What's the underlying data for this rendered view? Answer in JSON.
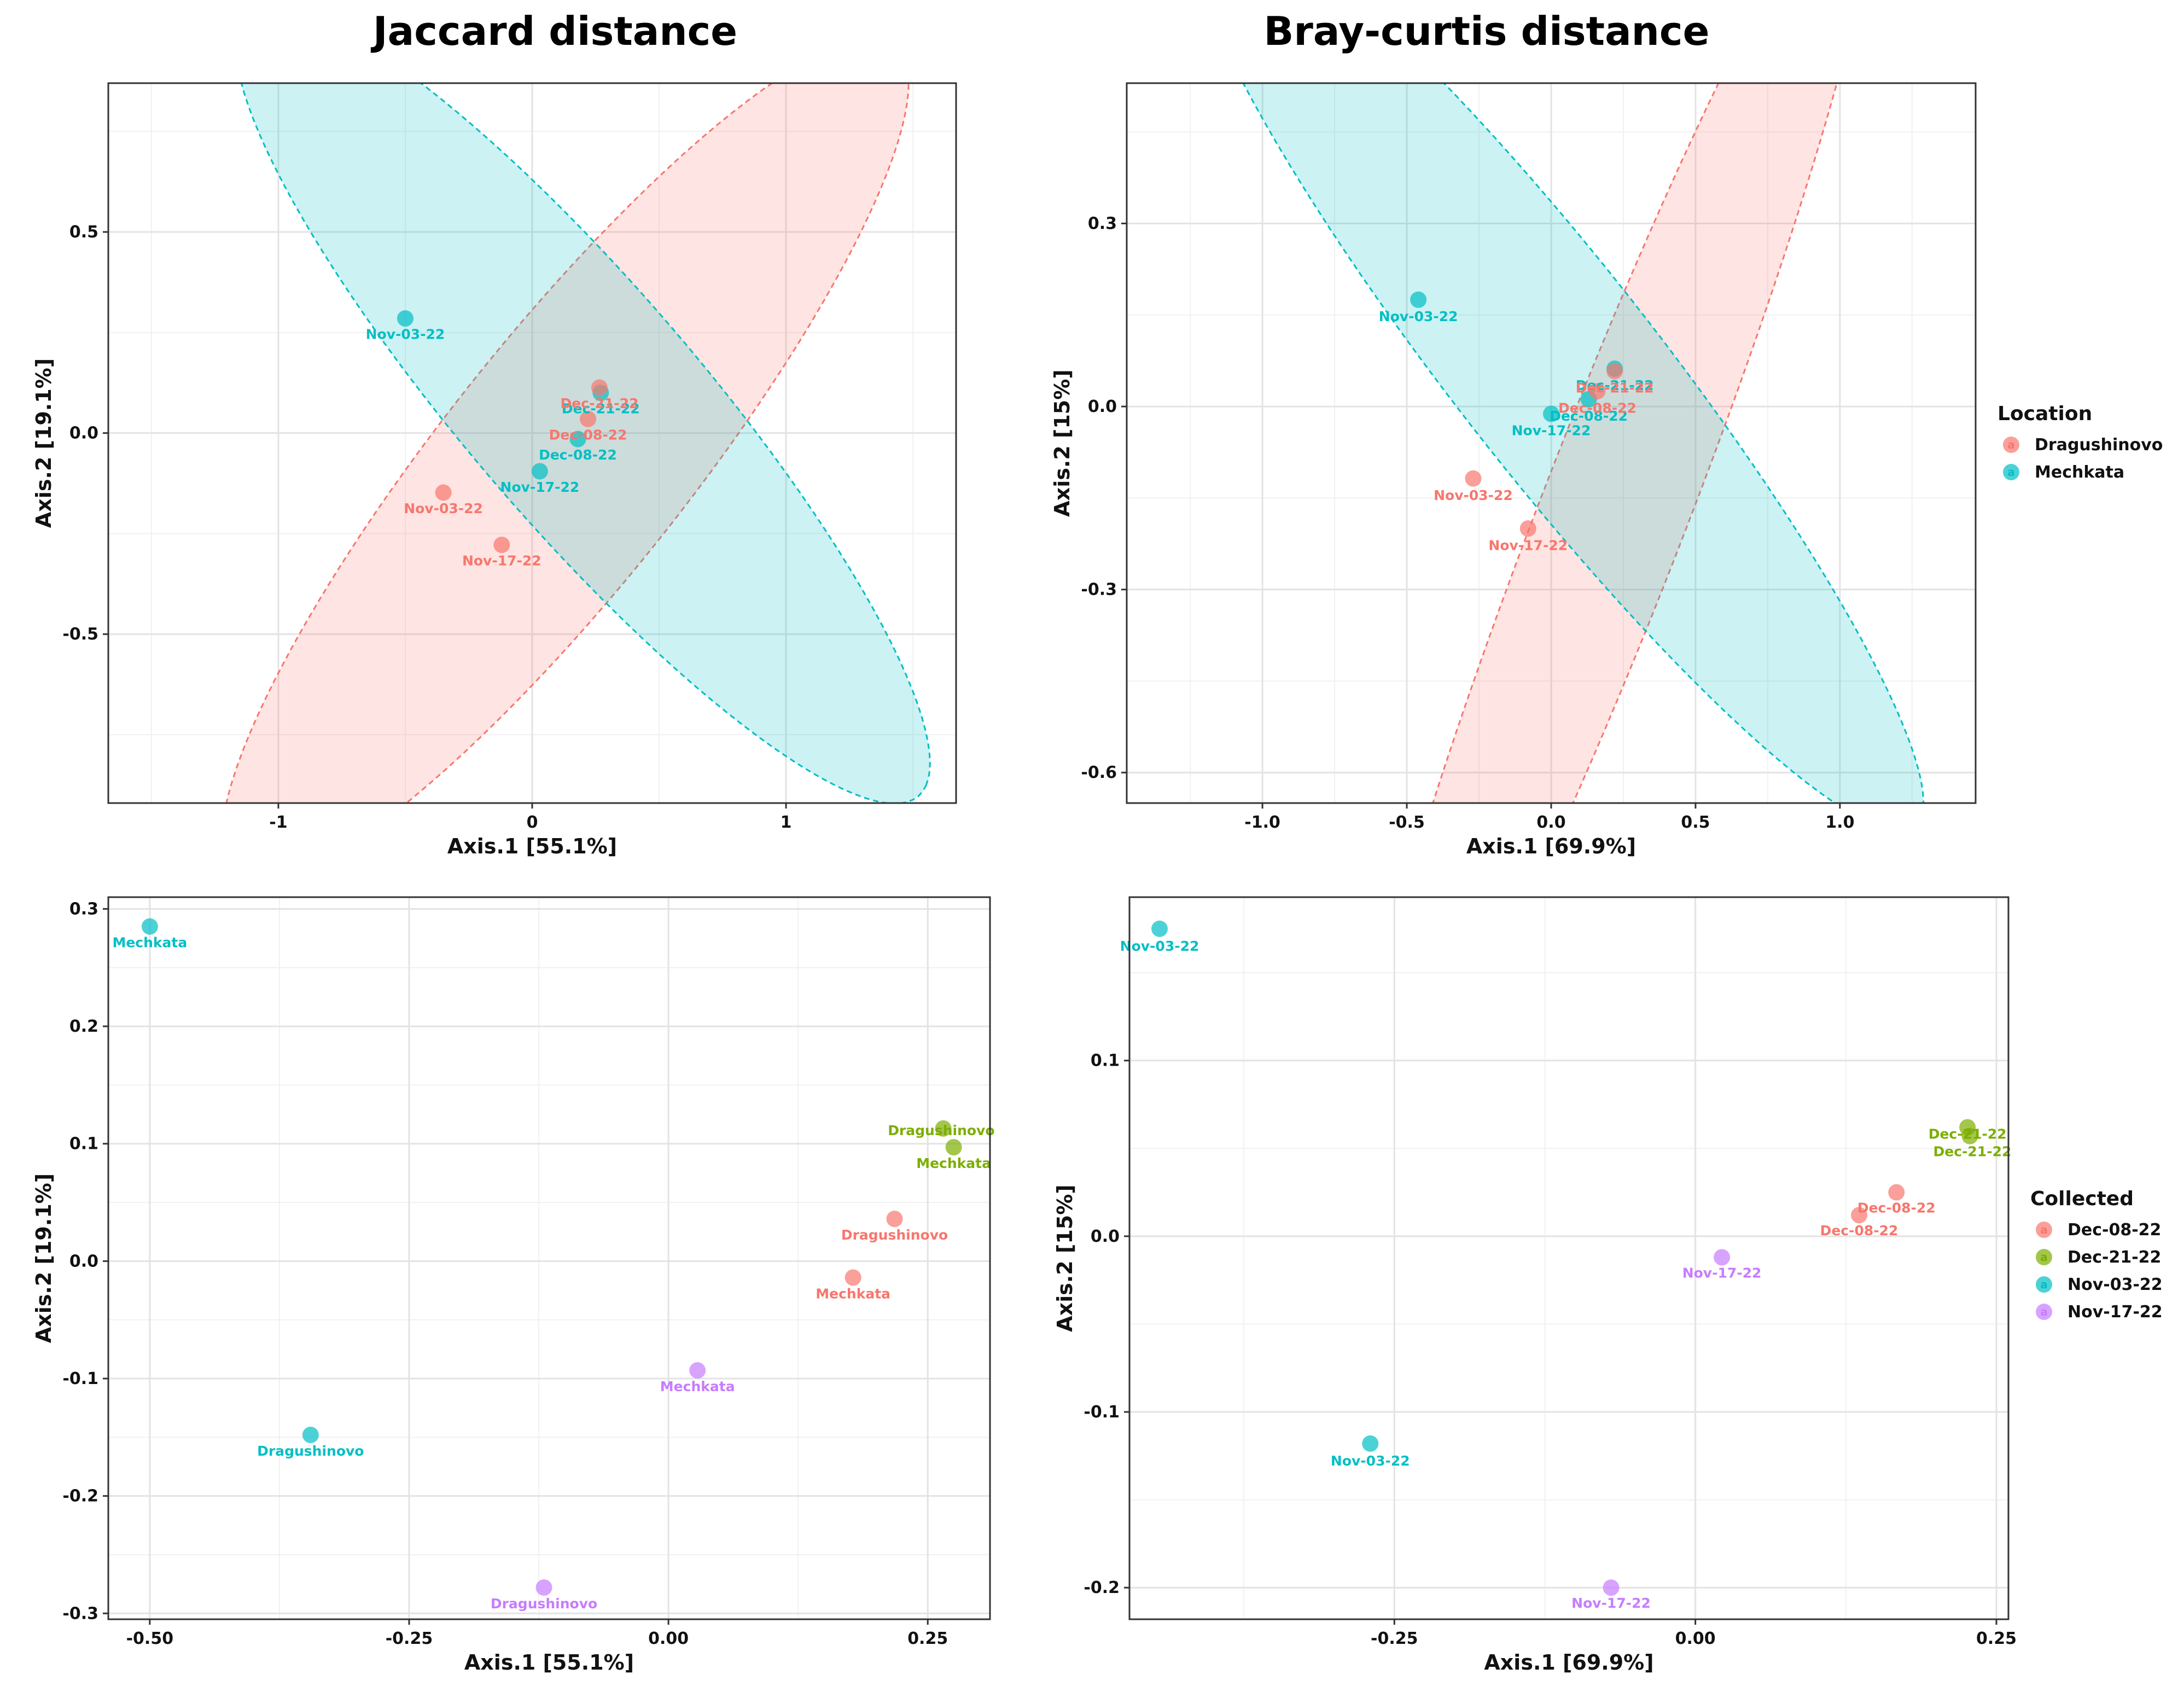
{
  "colors": {
    "Dragushinovo": "#F8766D",
    "Mechkata": "#00BFC4",
    "Dec-08-22": "#F8766D",
    "Dec-21-22": "#7CAE00",
    "Nov-03-22": "#00BFC4",
    "Nov-17-22": "#C77CFF"
  },
  "legends": [
    {
      "title": "Location",
      "entries": [
        "Dragushinovo",
        "Mechkata"
      ],
      "key_glyph": "a"
    },
    {
      "title": "Collected",
      "entries": [
        "Dec-08-22",
        "Dec-21-22",
        "Nov-03-22",
        "Nov-17-22"
      ],
      "key_glyph": "a"
    }
  ],
  "chart_data": [
    {
      "id": "jaccard-location",
      "type": "scatter",
      "title": "Jaccard distance",
      "xlabel": "Axis.1   [55.1%]",
      "ylabel": "Axis.2   [19.1%]",
      "xlim": [
        -1.67,
        1.67
      ],
      "ylim": [
        -0.92,
        0.87
      ],
      "xticks": [
        {
          "v": -1,
          "label": "-1"
        },
        {
          "v": 0,
          "label": "0"
        },
        {
          "v": 1,
          "label": "1"
        }
      ],
      "yticks": [
        {
          "v": -0.5,
          "label": "-0.5"
        },
        {
          "v": 0,
          "label": "0.0"
        },
        {
          "v": 0.5,
          "label": "0.5"
        }
      ],
      "color_by": "Location",
      "ellipses": [
        {
          "group": "Dragushinovo",
          "cx": 0.13,
          "cy": -0.07,
          "a": 1.67,
          "b": 0.38,
          "angle_deg": 37
        },
        {
          "group": "Mechkata",
          "cx": 0.2,
          "cy": 0.07,
          "a": 1.65,
          "b": 0.36,
          "angle_deg": -35
        }
      ],
      "points": [
        {
          "x": -0.5,
          "y": 0.285,
          "group": "Mechkata",
          "label": "Nov-03-22",
          "lx": 0,
          "ly": -0.04
        },
        {
          "x": 0.27,
          "y": 0.1,
          "group": "Mechkata",
          "label": "Dec-21-22",
          "lx": 0,
          "ly": -0.04
        },
        {
          "x": 0.18,
          "y": -0.015,
          "group": "Mechkata",
          "label": "Dec-08-22",
          "lx": 0,
          "ly": -0.04
        },
        {
          "x": 0.03,
          "y": -0.095,
          "group": "Mechkata",
          "label": "Nov-17-22",
          "lx": 0,
          "ly": -0.04
        },
        {
          "x": 0.265,
          "y": 0.113,
          "group": "Dragushinovo",
          "label": "Dec-21-22",
          "lx": 0,
          "ly": -0.04
        },
        {
          "x": 0.22,
          "y": 0.035,
          "group": "Dragushinovo",
          "label": "Dec-08-22",
          "lx": 0,
          "ly": -0.04
        },
        {
          "x": -0.35,
          "y": -0.148,
          "group": "Dragushinovo",
          "label": "Nov-03-22",
          "lx": 0,
          "ly": -0.04
        },
        {
          "x": -0.12,
          "y": -0.278,
          "group": "Dragushinovo",
          "label": "Nov-17-22",
          "lx": 0,
          "ly": -0.04
        }
      ]
    },
    {
      "id": "bray-location",
      "type": "scatter",
      "title": "Bray-curtis distance",
      "xlabel": "Axis.1   [69.9%]",
      "ylabel": "Axis.2   [15%]",
      "xlim": [
        -1.47,
        1.47
      ],
      "ylim": [
        -0.65,
        0.53
      ],
      "xticks": [
        {
          "v": -1,
          "label": "-1.0"
        },
        {
          "v": -0.5,
          "label": "-0.5"
        },
        {
          "v": 0,
          "label": "0.0"
        },
        {
          "v": 0.5,
          "label": "0.5"
        },
        {
          "v": 1,
          "label": "1.0"
        }
      ],
      "yticks": [
        {
          "v": -0.6,
          "label": "-0.6"
        },
        {
          "v": -0.3,
          "label": "-0.3"
        },
        {
          "v": 0,
          "label": "0.0"
        },
        {
          "v": 0.3,
          "label": "0.3"
        }
      ],
      "color_by": "Location",
      "ellipses": [
        {
          "group": "Dragushinovo",
          "cx": 0.22,
          "cy": -0.17,
          "a": 1.38,
          "b": 0.21,
          "angle_deg": 50
        },
        {
          "group": "Mechkata",
          "cx": 0.02,
          "cy": 0.06,
          "a": 1.46,
          "b": 0.23,
          "angle_deg": -30
        }
      ],
      "points": [
        {
          "x": -0.46,
          "y": 0.175,
          "group": "Mechkata",
          "label": "Nov-03-22",
          "lx": 0,
          "ly": -0.028
        },
        {
          "x": 0.22,
          "y": 0.062,
          "group": "Mechkata",
          "label": "Dec-21-22",
          "lx": 0,
          "ly": -0.028
        },
        {
          "x": 0.13,
          "y": 0.012,
          "group": "Mechkata",
          "label": "Dec-08-22",
          "lx": 0,
          "ly": -0.028
        },
        {
          "x": 0.0,
          "y": -0.012,
          "group": "Mechkata",
          "label": "Nov-17-22",
          "lx": 0,
          "ly": -0.028
        },
        {
          "x": 0.22,
          "y": 0.058,
          "group": "Dragushinovo",
          "label": "Dec-21-22",
          "lx": 0,
          "ly": -0.028
        },
        {
          "x": 0.16,
          "y": 0.025,
          "group": "Dragushinovo",
          "label": "Dec-08-22",
          "lx": 0,
          "ly": -0.028
        },
        {
          "x": -0.27,
          "y": -0.118,
          "group": "Dragushinovo",
          "label": "Nov-03-22",
          "lx": 0,
          "ly": -0.028
        },
        {
          "x": -0.08,
          "y": -0.2,
          "group": "Dragushinovo",
          "label": "Nov-17-22",
          "lx": 0,
          "ly": -0.028
        }
      ]
    },
    {
      "id": "jaccard-collected",
      "type": "scatter",
      "title": "",
      "xlabel": "Axis.1   [55.1%]",
      "ylabel": "Axis.2   [19.1%]",
      "xlim": [
        -0.54,
        0.31
      ],
      "ylim": [
        -0.305,
        0.31
      ],
      "xticks": [
        {
          "v": -0.5,
          "label": "-0.50"
        },
        {
          "v": -0.25,
          "label": "-0.25"
        },
        {
          "v": 0,
          "label": "0.00"
        },
        {
          "v": 0.25,
          "label": "0.25"
        }
      ],
      "yticks": [
        {
          "v": -0.3,
          "label": "-0.3"
        },
        {
          "v": -0.2,
          "label": "-0.2"
        },
        {
          "v": -0.1,
          "label": "-0.1"
        },
        {
          "v": 0,
          "label": "0.0"
        },
        {
          "v": 0.1,
          "label": "0.1"
        },
        {
          "v": 0.2,
          "label": "0.2"
        },
        {
          "v": 0.3,
          "label": "0.3"
        }
      ],
      "color_by": "Collected",
      "ellipses": [],
      "points": [
        {
          "x": -0.5,
          "y": 0.285,
          "group": "Nov-03-22",
          "label": "Mechkata",
          "lx": 0,
          "ly": -0.014
        },
        {
          "x": -0.345,
          "y": -0.148,
          "group": "Nov-03-22",
          "label": "Dragushinovo",
          "lx": 0,
          "ly": -0.014
        },
        {
          "x": 0.265,
          "y": 0.113,
          "group": "Dec-21-22",
          "label": "Dragushinovo",
          "lx": -0.002,
          "ly": -0.002
        },
        {
          "x": 0.275,
          "y": 0.097,
          "group": "Dec-21-22",
          "label": "Mechkata",
          "lx": 0,
          "ly": -0.014
        },
        {
          "x": 0.218,
          "y": 0.036,
          "group": "Dec-08-22",
          "label": "Dragushinovo",
          "lx": 0,
          "ly": -0.014
        },
        {
          "x": 0.178,
          "y": -0.014,
          "group": "Dec-08-22",
          "label": "Mechkata",
          "lx": 0,
          "ly": -0.014
        },
        {
          "x": 0.028,
          "y": -0.093,
          "group": "Nov-17-22",
          "label": "Mechkata",
          "lx": 0,
          "ly": -0.014
        },
        {
          "x": -0.12,
          "y": -0.278,
          "group": "Nov-17-22",
          "label": "Dragushinovo",
          "lx": 0,
          "ly": -0.014
        }
      ]
    },
    {
      "id": "bray-collected",
      "type": "scatter",
      "title": "",
      "xlabel": "Axis.1   [69.9%]",
      "ylabel": "Axis.2   [15%]",
      "xlim": [
        -0.47,
        0.26
      ],
      "ylim": [
        -0.218,
        0.193
      ],
      "xticks": [
        {
          "v": -0.25,
          "label": "-0.25"
        },
        {
          "v": 0,
          "label": "0.00"
        },
        {
          "v": 0.25,
          "label": "0.25"
        }
      ],
      "yticks": [
        {
          "v": -0.2,
          "label": "-0.2"
        },
        {
          "v": -0.1,
          "label": "-0.1"
        },
        {
          "v": 0,
          "label": "0.0"
        },
        {
          "v": 0.1,
          "label": "0.1"
        }
      ],
      "color_by": "Collected",
      "ellipses": [],
      "points": [
        {
          "x": -0.445,
          "y": 0.175,
          "group": "Nov-03-22",
          "label": "Nov-03-22",
          "lx": 0,
          "ly": -0.01
        },
        {
          "x": -0.27,
          "y": -0.118,
          "group": "Nov-03-22",
          "label": "Nov-03-22",
          "lx": 0,
          "ly": -0.01
        },
        {
          "x": 0.226,
          "y": 0.062,
          "group": "Dec-21-22",
          "label": "Dec-21-22",
          "lx": 0.0,
          "ly": -0.004
        },
        {
          "x": 0.228,
          "y": 0.057,
          "group": "Dec-21-22",
          "label": "Dec-21-22",
          "lx": 0.002,
          "ly": -0.009
        },
        {
          "x": 0.167,
          "y": 0.025,
          "group": "Dec-08-22",
          "label": "Dec-08-22",
          "lx": 0,
          "ly": -0.009
        },
        {
          "x": 0.136,
          "y": 0.012,
          "group": "Dec-08-22",
          "label": "Dec-08-22",
          "lx": 0,
          "ly": -0.009
        },
        {
          "x": 0.022,
          "y": -0.012,
          "group": "Nov-17-22",
          "label": "Nov-17-22",
          "lx": 0,
          "ly": -0.009
        },
        {
          "x": -0.07,
          "y": -0.2,
          "group": "Nov-17-22",
          "label": "Nov-17-22",
          "lx": 0,
          "ly": -0.009
        }
      ]
    }
  ]
}
